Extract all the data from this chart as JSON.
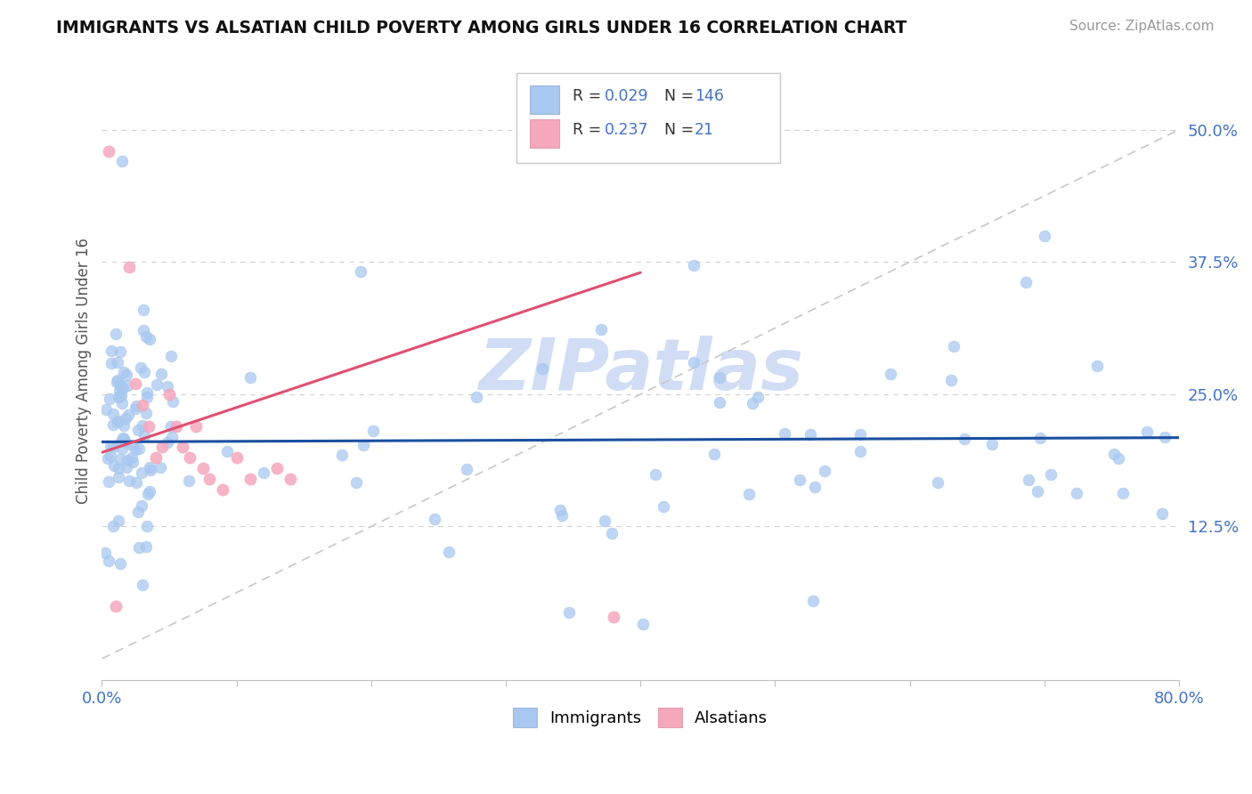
{
  "title": "IMMIGRANTS VS ALSATIAN CHILD POVERTY AMONG GIRLS UNDER 16 CORRELATION CHART",
  "source": "Source: ZipAtlas.com",
  "ylabel": "Child Poverty Among Girls Under 16",
  "xlim": [
    0.0,
    0.8
  ],
  "ylim": [
    -0.02,
    0.565
  ],
  "yticks": [
    0.125,
    0.25,
    0.375,
    0.5
  ],
  "yticklabels": [
    "12.5%",
    "25.0%",
    "37.5%",
    "50.0%"
  ],
  "immigrants_color": "#a8c8f0",
  "alsatians_color": "#f5a8bc",
  "immigrants_line_color": "#1a4fa0",
  "alsatians_line_color": "#e05070",
  "diag_line_color": "#c8c8c8",
  "legend_R1": "0.029",
  "legend_N1": "146",
  "legend_R2": "0.237",
  "legend_N2": "21",
  "watermark_color": "#d0ddf5"
}
